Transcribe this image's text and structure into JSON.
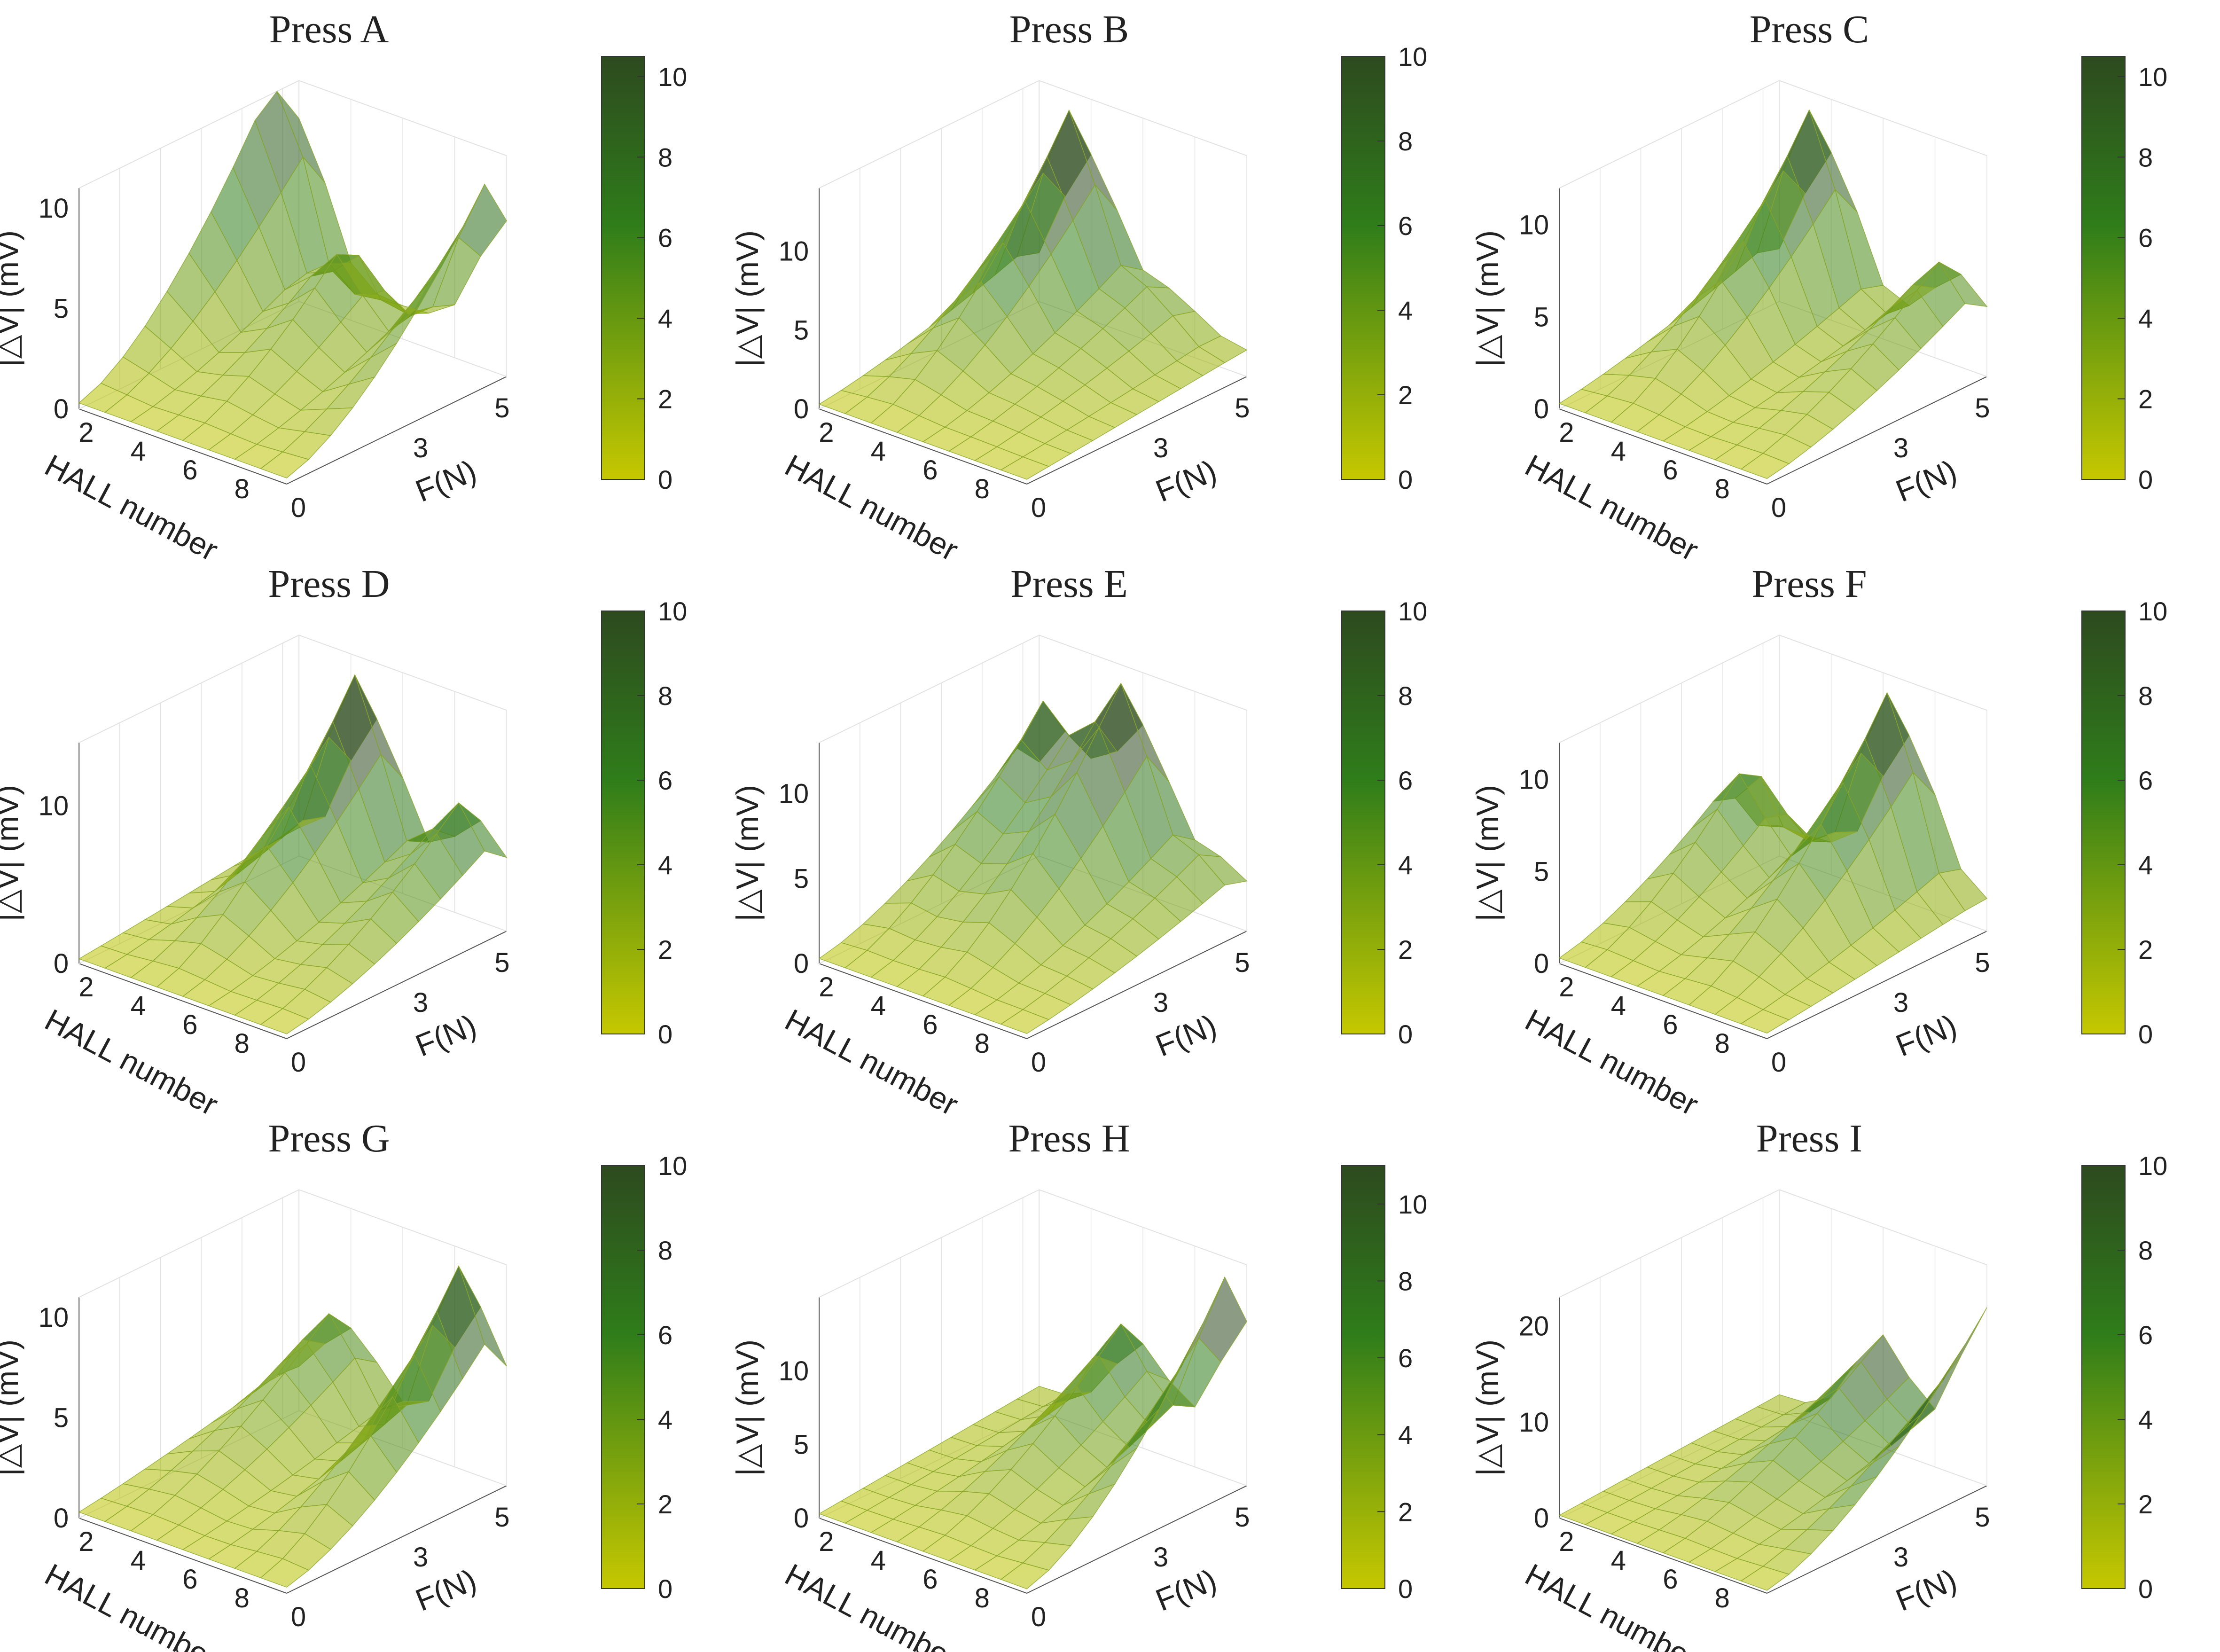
{
  "figure": {
    "rows": 3,
    "cols": 3,
    "colormap": [
      "#c6c800",
      "#2f7d1a",
      "#2d4a1f"
    ]
  },
  "chart_data": [
    {
      "type": "surface",
      "title": "Press A",
      "xlabel": "HALL number",
      "ylabel": "F(N)",
      "zlabel": "|△V| (mV)",
      "xticks": [
        "2",
        "4",
        "6",
        "8"
      ],
      "yticks": [
        "0",
        "3",
        "5"
      ],
      "zticks": [
        "0",
        "5",
        "10"
      ],
      "zlim": [
        0,
        11
      ],
      "colorbar": {
        "ticks": [
          "0",
          "2",
          "4",
          "6",
          "8",
          "10"
        ],
        "max": 10.5
      },
      "peaks": [
        {
          "hall": 1,
          "f": 5,
          "height": 11
        },
        {
          "hall": 9,
          "f": 5,
          "height": 9
        },
        {
          "hall": 5,
          "f": 4,
          "height": 5
        }
      ]
    },
    {
      "type": "surface",
      "title": "Press B",
      "xlabel": "HALL number",
      "ylabel": "F(N)",
      "zlabel": "|△V| (mV)",
      "xticks": [
        "2",
        "4",
        "6",
        "8"
      ],
      "yticks": [
        "0",
        "3",
        "5"
      ],
      "zticks": [
        "0",
        "5",
        "10"
      ],
      "zlim": [
        0,
        14
      ],
      "colorbar": {
        "ticks": [
          "0",
          "2",
          "4",
          "6",
          "8",
          "10"
        ],
        "max": 10
      },
      "peaks": [
        {
          "hall": 3,
          "f": 5,
          "height": 13
        },
        {
          "hall": 6,
          "f": 5,
          "height": 3
        }
      ]
    },
    {
      "type": "surface",
      "title": "Press C",
      "xlabel": "HALL number",
      "ylabel": "F(N)",
      "zlabel": "|△V| (mV)",
      "xticks": [
        "2",
        "4",
        "6",
        "8"
      ],
      "yticks": [
        "0",
        "3",
        "5"
      ],
      "zticks": [
        "0",
        "5",
        "10"
      ],
      "zlim": [
        0,
        12
      ],
      "colorbar": {
        "ticks": [
          "0",
          "2",
          "4",
          "6",
          "8",
          "10"
        ],
        "max": 10.5
      },
      "peaks": [
        {
          "hall": 3,
          "f": 5,
          "height": 11
        },
        {
          "hall": 8,
          "f": 5,
          "height": 5
        }
      ]
    },
    {
      "type": "surface",
      "title": "Press D",
      "xlabel": "HALL number",
      "ylabel": "F(N)",
      "zlabel": "|△V| (mV)",
      "xticks": [
        "2",
        "4",
        "6",
        "8"
      ],
      "yticks": [
        "0",
        "3",
        "5"
      ],
      "zticks": [
        "0",
        "10"
      ],
      "zlim": [
        0,
        14
      ],
      "colorbar": {
        "ticks": [
          "0",
          "2",
          "4",
          "6",
          "8",
          "10"
        ],
        "max": 10
      },
      "peaks": [
        {
          "hall": 4,
          "f": 5,
          "height": 13
        },
        {
          "hall": 8,
          "f": 5,
          "height": 7
        }
      ]
    },
    {
      "type": "surface",
      "title": "Press E",
      "xlabel": "HALL number",
      "ylabel": "F(N)",
      "zlabel": "|△V| (mV)",
      "xticks": [
        "2",
        "4",
        "6",
        "8"
      ],
      "yticks": [
        "0",
        "3",
        "5"
      ],
      "zticks": [
        "0",
        "5",
        "10"
      ],
      "zlim": [
        0,
        13
      ],
      "colorbar": {
        "ticks": [
          "0",
          "2",
          "4",
          "6",
          "8",
          "10"
        ],
        "max": 10
      },
      "peaks": [
        {
          "hall": 2,
          "f": 5,
          "height": 9
        },
        {
          "hall": 5,
          "f": 5,
          "height": 12
        },
        {
          "hall": 8,
          "f": 5,
          "height": 3
        }
      ]
    },
    {
      "type": "surface",
      "title": "Press F",
      "xlabel": "HALL number",
      "ylabel": "F(N)",
      "zlabel": "|△V| (mV)",
      "xticks": [
        "2",
        "4",
        "6",
        "8"
      ],
      "yticks": [
        "0",
        "3",
        "5"
      ],
      "zticks": [
        "0",
        "5",
        "10"
      ],
      "zlim": [
        0,
        12
      ],
      "colorbar": {
        "ticks": [
          "0",
          "2",
          "4",
          "6",
          "8",
          "10"
        ],
        "max": 10
      },
      "peaks": [
        {
          "hall": 6,
          "f": 5,
          "height": 11
        },
        {
          "hall": 2,
          "f": 4,
          "height": 6
        }
      ]
    },
    {
      "type": "surface",
      "title": "Press G",
      "xlabel": "HALL number",
      "ylabel": "F(N)",
      "zlabel": "|△V| (mV)",
      "xticks": [
        "2",
        "4",
        "6",
        "8"
      ],
      "yticks": [
        "0",
        "3",
        "5"
      ],
      "zticks": [
        "0",
        "5",
        "10"
      ],
      "zlim": [
        0,
        11
      ],
      "colorbar": {
        "ticks": [
          "0",
          "2",
          "4",
          "6",
          "8",
          "10"
        ],
        "max": 10
      },
      "peaks": [
        {
          "hall": 8,
          "f": 5,
          "height": 10
        },
        {
          "hall": 3,
          "f": 5,
          "height": 5
        }
      ]
    },
    {
      "type": "surface",
      "title": "Press H",
      "xlabel": "HALL number",
      "ylabel": "F(N)",
      "zlabel": "|△V| (mV)",
      "xticks": [
        "2",
        "4",
        "6",
        "8"
      ],
      "yticks": [
        "0",
        "3",
        "5"
      ],
      "zticks": [
        "0",
        "5",
        "10"
      ],
      "zlim": [
        0,
        15
      ],
      "colorbar": {
        "ticks": [
          "0",
          "2",
          "4",
          "6",
          "8",
          "10"
        ],
        "max": 11
      },
      "peaks": [
        {
          "hall": 9,
          "f": 5,
          "height": 14
        },
        {
          "hall": 5,
          "f": 5,
          "height": 8
        }
      ]
    },
    {
      "type": "surface",
      "title": "Press I",
      "xlabel": "HALL number",
      "ylabel": "F(N)",
      "zlabel": "|△V| (mV)",
      "xticks": [
        "2",
        "4",
        "6",
        "8"
      ],
      "yticks": [
        "3",
        "5"
      ],
      "zticks": [
        "0",
        "10",
        "20"
      ],
      "zlim": [
        0,
        23
      ],
      "colorbar": {
        "ticks": [
          "0",
          "2",
          "4",
          "6",
          "8",
          "10"
        ],
        "max": 10
      },
      "peaks": [
        {
          "hall": 9,
          "f": 6,
          "height": 20
        },
        {
          "hall": 5,
          "f": 6,
          "height": 12
        }
      ]
    }
  ]
}
